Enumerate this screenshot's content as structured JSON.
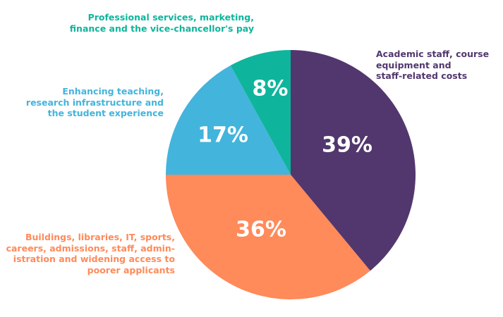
{
  "chart_data": {
    "type": "pie",
    "title": "",
    "slices": [
      {
        "key": "purple",
        "value": 39,
        "pct_label": "39%",
        "label_lines": [
          "Academic staff, course",
          "equipment and",
          "staff-related costs"
        ],
        "color": "#52376e"
      },
      {
        "key": "orange",
        "value": 36,
        "pct_label": "36%",
        "label_lines": [
          "Buildings, libraries, IT, sports,",
          "careers, admissions, staff, admin-",
          "istration and widening access to",
          "poorer applicants"
        ],
        "color": "#ff8a5a"
      },
      {
        "key": "blue",
        "value": 17,
        "pct_label": "17%",
        "label_lines": [
          "Enhancing teaching,",
          "research infrastructure and",
          "the student experience"
        ],
        "color": "#43b4dc"
      },
      {
        "key": "teal",
        "value": 8,
        "pct_label": "8%",
        "label_lines": [
          "Professional services, marketing,",
          "finance and the vice-chancellor's pay"
        ],
        "color": "#0eb59c"
      }
    ],
    "start": "12 o'clock",
    "direction": "clockwise",
    "legend": "none (labels placed beside slices)"
  }
}
